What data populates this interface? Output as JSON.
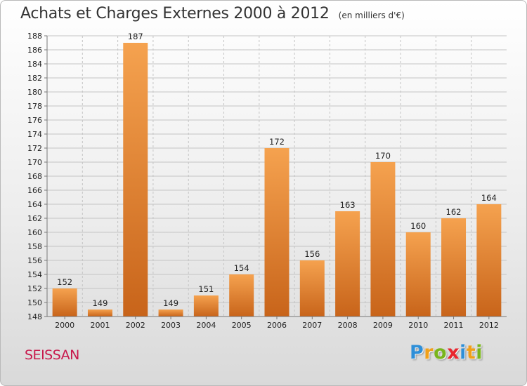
{
  "header": {
    "title": "Achats et Charges Externes 2000 à 2012",
    "unit": "(en milliers d'€)"
  },
  "commune": "SEISSAN",
  "logo": {
    "letters": [
      "P",
      "r",
      "o",
      "x",
      "i",
      "t",
      "i"
    ],
    "colors": [
      "#2e8fd8",
      "#f0a01a",
      "#79b51c",
      "#e8262e",
      "#2e8fd8",
      "#f0a01a",
      "#79b51c"
    ]
  },
  "colors": {
    "bar_light": "#f5a24f",
    "bar_dark": "#c8641a",
    "grid": "#c4c4c4",
    "axis": "#777777"
  },
  "chart_data": {
    "type": "bar",
    "title": "Achats et Charges Externes 2000 à 2012",
    "subtitle": "(en milliers d'€)",
    "categories": [
      "2000",
      "2001",
      "2002",
      "2003",
      "2004",
      "2005",
      "2006",
      "2007",
      "2008",
      "2009",
      "2010",
      "2011",
      "2012"
    ],
    "values": [
      152,
      149,
      187,
      149,
      151,
      154,
      172,
      156,
      163,
      170,
      160,
      162,
      164
    ],
    "ylim": [
      148,
      188
    ],
    "yticks": [
      148,
      150,
      152,
      154,
      156,
      158,
      160,
      162,
      164,
      166,
      168,
      170,
      172,
      174,
      176,
      178,
      180,
      182,
      184,
      186,
      188
    ],
    "grid": true,
    "xlabel": "",
    "ylabel": ""
  }
}
